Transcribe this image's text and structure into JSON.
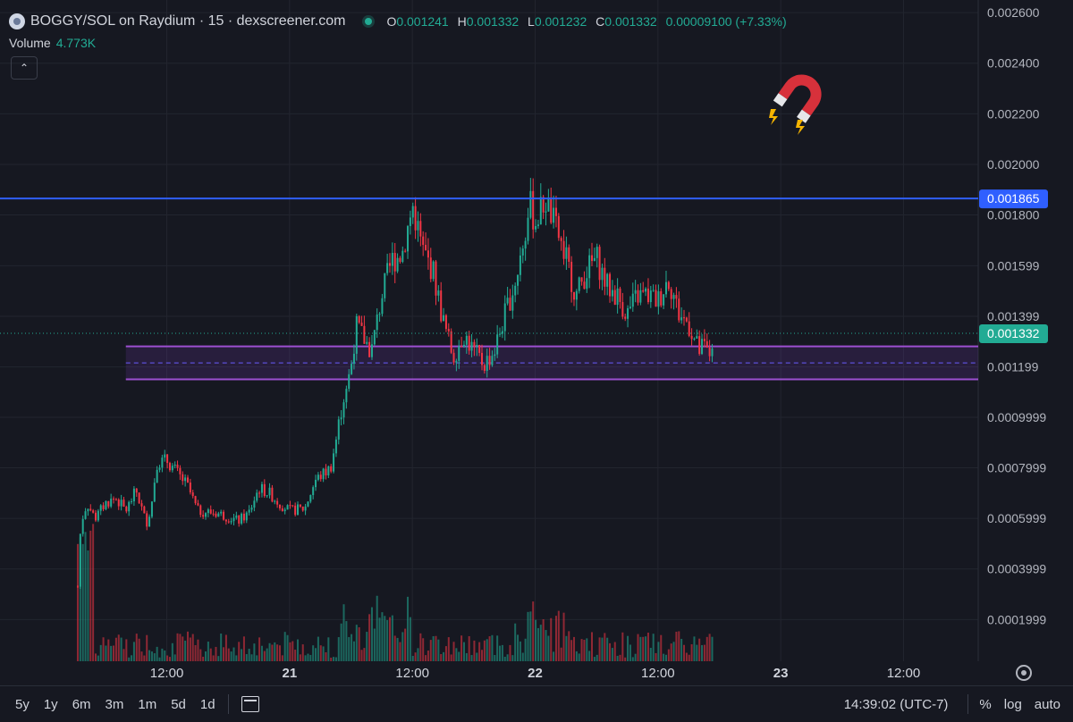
{
  "header": {
    "title": "BOGGY/SOL on Raydium · 15 · dexscreener.com",
    "ohlc": [
      {
        "label": "O",
        "value": "0.001241"
      },
      {
        "label": "H",
        "value": "0.001332"
      },
      {
        "label": "L",
        "value": "0.001232"
      },
      {
        "label": "C",
        "value": "0.001332"
      }
    ],
    "change": "0.00009100 (+7.33%)"
  },
  "volume": {
    "label": "Volume",
    "value": "4.773K"
  },
  "toolbar": {
    "timeframes": [
      "5y",
      "1y",
      "6m",
      "3m",
      "1m",
      "5d",
      "1d"
    ],
    "time": "14:39:02 (UTC-7)",
    "right_options": [
      "%",
      "log",
      "auto"
    ]
  },
  "chart_data": {
    "type": "candlestick",
    "y_tick_labels": [
      "0.002600",
      "0.002400",
      "0.002200",
      "0.002000",
      "0.001800",
      "0.001599",
      "0.001399",
      "0.001199",
      "0.0009999",
      "0.0007999",
      "0.0005999",
      "0.0003999",
      "0.0001999"
    ],
    "y_ticks": [
      0.0026,
      0.0024,
      0.0022,
      0.002,
      0.0018,
      0.001599,
      0.001399,
      0.001199,
      0.0009999,
      0.0007999,
      0.0005999,
      0.0003999,
      0.0001999
    ],
    "ylim": [
      3.5e-05,
      0.00265
    ],
    "x_tick_labels": [
      "12:00",
      "21",
      "12:00",
      "22",
      "12:00",
      "23",
      "12:00"
    ],
    "x_ticks_hours": [
      12,
      24,
      36,
      48,
      60,
      72,
      84
    ],
    "xlim_hours": [
      -4.3,
      91.3
    ],
    "price_path": [
      [
        3.3,
        0.00033
      ],
      [
        3.6,
        0.00058
      ],
      [
        4.2,
        0.00066
      ],
      [
        5.0,
        0.0006
      ],
      [
        6.0,
        0.00066
      ],
      [
        7.0,
        0.00068
      ],
      [
        8.0,
        0.00063
      ],
      [
        9.0,
        0.00071
      ],
      [
        10.0,
        0.00058
      ],
      [
        10.5,
        0.00065
      ],
      [
        11.0,
        0.00082
      ],
      [
        12.0,
        0.00083
      ],
      [
        13.0,
        0.00078
      ],
      [
        14.0,
        0.00073
      ],
      [
        15.0,
        0.00063
      ],
      [
        17.0,
        0.00062
      ],
      [
        19.0,
        0.00059
      ],
      [
        20.0,
        0.00062
      ],
      [
        21.0,
        0.00072
      ],
      [
        22.0,
        0.0007
      ],
      [
        23.0,
        0.00066
      ],
      [
        24.0,
        0.00063
      ],
      [
        25.5,
        0.00064
      ],
      [
        26.5,
        0.00075
      ],
      [
        28.0,
        0.0008
      ],
      [
        28.5,
        0.0009
      ],
      [
        29.0,
        0.00102
      ],
      [
        30.0,
        0.0012
      ],
      [
        30.5,
        0.00136
      ],
      [
        31.0,
        0.00133
      ],
      [
        32.0,
        0.00126
      ],
      [
        33.0,
        0.00148
      ],
      [
        34.0,
        0.00162
      ],
      [
        35.0,
        0.00165
      ],
      [
        36.0,
        0.00184
      ],
      [
        37.0,
        0.00166
      ],
      [
        38.0,
        0.00158
      ],
      [
        39.0,
        0.00138
      ],
      [
        40.0,
        0.00124
      ],
      [
        41.0,
        0.00133
      ],
      [
        42.0,
        0.00126
      ],
      [
        43.0,
        0.00121
      ],
      [
        44.0,
        0.00126
      ],
      [
        45.0,
        0.0014
      ],
      [
        46.0,
        0.00153
      ],
      [
        47.0,
        0.00172
      ],
      [
        47.5,
        0.00184
      ],
      [
        48.0,
        0.00177
      ],
      [
        49.0,
        0.00186
      ],
      [
        50.0,
        0.00175
      ],
      [
        51.0,
        0.00163
      ],
      [
        52.0,
        0.00148
      ],
      [
        53.0,
        0.00158
      ],
      [
        54.0,
        0.00163
      ],
      [
        55.0,
        0.00152
      ],
      [
        56.0,
        0.00148
      ],
      [
        57.0,
        0.00141
      ],
      [
        58.0,
        0.00148
      ],
      [
        59.0,
        0.00148
      ],
      [
        60.0,
        0.00146
      ],
      [
        61.0,
        0.00155
      ],
      [
        61.5,
        0.00149
      ],
      [
        62.0,
        0.00141
      ],
      [
        63.0,
        0.00137
      ],
      [
        64.0,
        0.00126
      ],
      [
        64.5,
        0.00128
      ],
      [
        65.0,
        0.00124
      ],
      [
        65.5,
        0.001332
      ]
    ],
    "series": [
      {
        "name": "",
        "role": "resistance",
        "value": 0.001865,
        "label": "0.001865",
        "color": "#2f5fff"
      },
      {
        "name": "",
        "role": "last-price",
        "value": 0.001332,
        "label": "0.001332",
        "color": "#22ab94"
      }
    ],
    "support_zone": {
      "top": 0.00128,
      "bottom": 0.00115,
      "mid": 0.001215,
      "from_hour": 8.0,
      "to_hour": 91.3,
      "color": "#9c4fd0"
    },
    "colors": {
      "up": "#22ab94",
      "down": "#f23645",
      "grid": "#22252f",
      "background": "#161821"
    },
    "grid": true
  }
}
